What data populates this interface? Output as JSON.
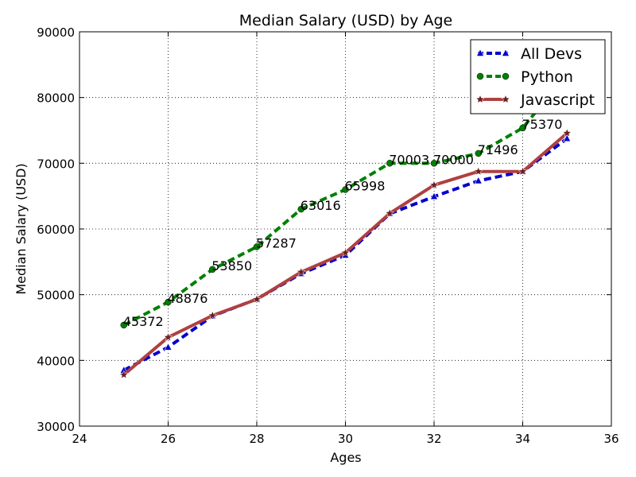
{
  "chart_data": {
    "type": "line",
    "title": "Median Salary (USD) by Age",
    "xlabel": "Ages",
    "ylabel": "Median Salary (USD)",
    "xlim": [
      24,
      36
    ],
    "ylim": [
      30000,
      90000
    ],
    "xticks": [
      24,
      26,
      28,
      30,
      32,
      34,
      36
    ],
    "yticks": [
      30000,
      40000,
      50000,
      60000,
      70000,
      80000,
      90000
    ],
    "grid": true,
    "legend_position": "top-right",
    "x": [
      25,
      26,
      27,
      28,
      29,
      30,
      31,
      32,
      33,
      34,
      35
    ],
    "series": [
      {
        "name": "All Devs",
        "color": "#0000cc",
        "line_style": "dashed",
        "marker": "triangle",
        "values": [
          38496,
          42000,
          46752,
          49320,
          53200,
          56000,
          62316,
          64928,
          67317,
          68748,
          73752
        ]
      },
      {
        "name": "Python",
        "color": "#008000",
        "line_style": "dashed",
        "marker": "circle",
        "values": [
          45372,
          48876,
          53850,
          57287,
          63016,
          65998,
          70003,
          70000,
          71496,
          75370,
          83640
        ]
      },
      {
        "name": "Javascript",
        "color": "#b04040",
        "line_style": "solid",
        "marker": "star",
        "values": [
          37810,
          43515,
          46823,
          49293,
          53437,
          56373,
          62375,
          66674,
          68745,
          68746,
          74583
        ]
      }
    ],
    "annotations": [
      "45372",
      "48876",
      "53850",
      "57287",
      "63016",
      "65998",
      "70003",
      "70000",
      "71496",
      "75370"
    ]
  }
}
